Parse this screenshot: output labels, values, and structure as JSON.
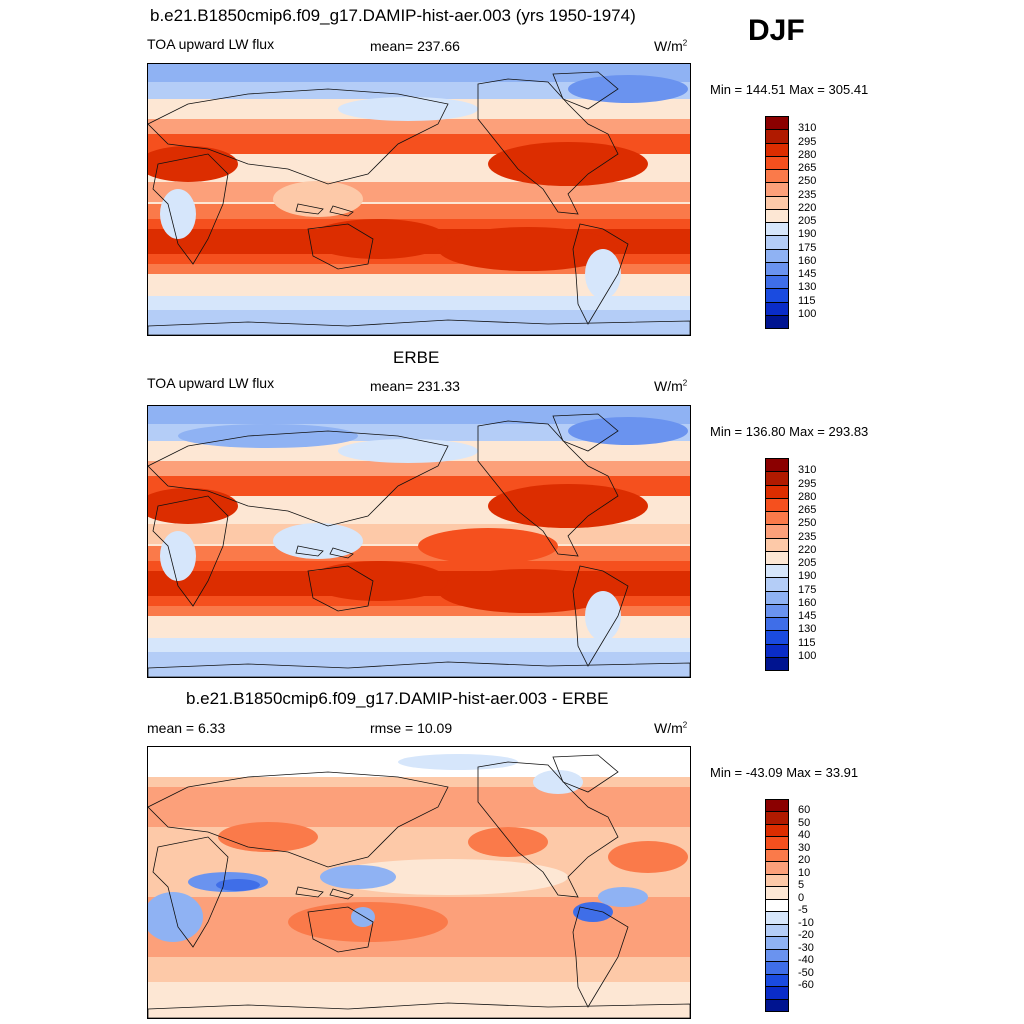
{
  "season": "DJF",
  "panels": [
    {
      "id": "model",
      "title": "b.e21.B1850cmip6.f09_g17.DAMIP-hist-aer.003 (yrs 1950-1974)",
      "left_label": "TOA upward LW flux",
      "center_label": "mean= 237.66",
      "units": "W/m",
      "units_sup": "2",
      "minmax": "Min = 144.51 Max = 305.41",
      "colorbar": {
        "ticks": [
          "310",
          "295",
          "280",
          "265",
          "250",
          "235",
          "220",
          "205",
          "190",
          "175",
          "160",
          "145",
          "130",
          "115",
          "100"
        ],
        "colors": [
          "#8b0000",
          "#b01a00",
          "#dc2d00",
          "#f5501e",
          "#fa7a4a",
          "#fca07a",
          "#fdc9a8",
          "#fde7d4",
          "#d6e6fb",
          "#b4cdf7",
          "#8fb2f3",
          "#6a93ef",
          "#3f6ee8",
          "#1a4be0",
          "#0a2cc8",
          "#001490"
        ]
      }
    },
    {
      "id": "obs",
      "title": "ERBE",
      "left_label": "TOA upward LW flux",
      "center_label": "mean= 231.33",
      "units": "W/m",
      "units_sup": "2",
      "minmax": "Min = 136.80 Max = 293.83",
      "colorbar": {
        "ticks": [
          "310",
          "295",
          "280",
          "265",
          "250",
          "235",
          "220",
          "205",
          "190",
          "175",
          "160",
          "145",
          "130",
          "115",
          "100"
        ],
        "colors": [
          "#8b0000",
          "#b01a00",
          "#dc2d00",
          "#f5501e",
          "#fa7a4a",
          "#fca07a",
          "#fdc9a8",
          "#fde7d4",
          "#d6e6fb",
          "#b4cdf7",
          "#8fb2f3",
          "#6a93ef",
          "#3f6ee8",
          "#1a4be0",
          "#0a2cc8",
          "#001490"
        ]
      }
    },
    {
      "id": "diff",
      "title": "b.e21.B1850cmip6.f09_g17.DAMIP-hist-aer.003 - ERBE",
      "left_label": "mean =   6.33",
      "center_label": "rmse =  10.09",
      "units": "W/m",
      "units_sup": "2",
      "minmax": "Min = -43.09 Max =  33.91",
      "colorbar": {
        "ticks": [
          "60",
          "50",
          "40",
          "30",
          "20",
          "10",
          "5",
          "0",
          "-5",
          "-10",
          "-20",
          "-30",
          "-40",
          "-50",
          "-60"
        ],
        "colors": [
          "#8b0000",
          "#b01a00",
          "#dc2d00",
          "#f5501e",
          "#fa7a4a",
          "#fca07a",
          "#fdc9a8",
          "#fde7d4",
          "#ffffff",
          "#d6e6fb",
          "#b4cdf7",
          "#8fb2f3",
          "#6a93ef",
          "#3f6ee8",
          "#1a4be0",
          "#0a2cc8",
          "#001490"
        ]
      }
    }
  ]
}
